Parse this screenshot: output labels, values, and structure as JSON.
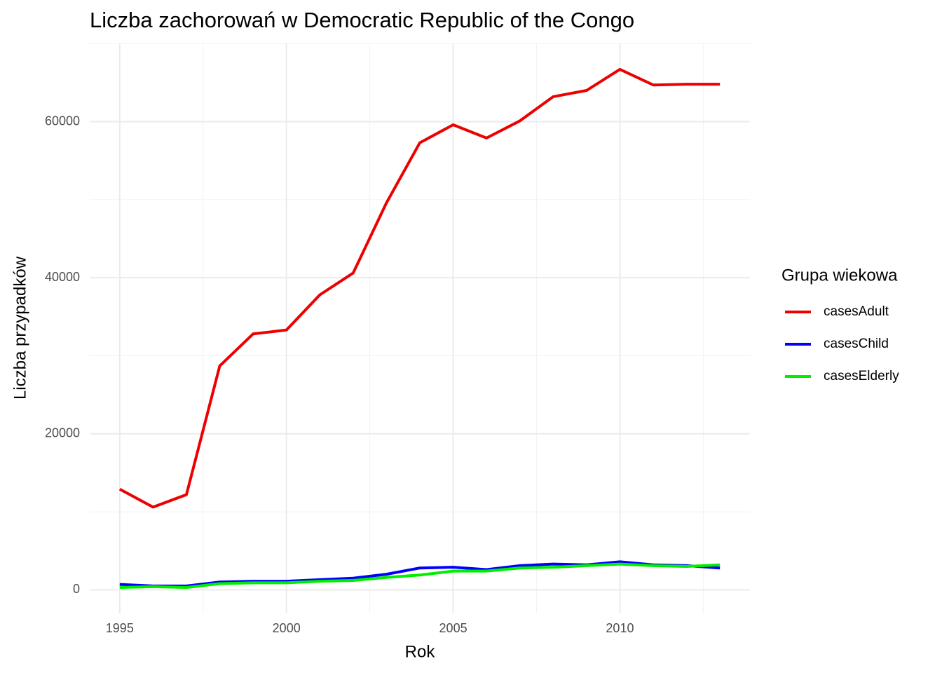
{
  "chart_data": {
    "type": "line",
    "title": "Liczba zachorowań w Democratic Republic of the Congo",
    "x_label": "Rok",
    "y_label": "Liczba przypadków",
    "legend_title": "Grupa wiekowa",
    "legend_position": "right",
    "grid": true,
    "x": [
      1995,
      1996,
      1997,
      1998,
      1999,
      2000,
      2001,
      2002,
      2003,
      2004,
      2005,
      2006,
      2007,
      2008,
      2009,
      2010,
      2011,
      2012,
      2013
    ],
    "series": [
      {
        "name": "casesAdult",
        "color": "#ee0000",
        "values": [
          12900,
          10600,
          12200,
          28700,
          32800,
          33300,
          37800,
          40600,
          49600,
          57300,
          59600,
          57900,
          60100,
          63200,
          64000,
          66700,
          64700,
          64800,
          64800
        ]
      },
      {
        "name": "casesChild",
        "color": "#0000ff",
        "values": [
          700,
          500,
          500,
          1000,
          1100,
          1100,
          1300,
          1500,
          2000,
          2800,
          2900,
          2600,
          3100,
          3300,
          3200,
          3600,
          3200,
          3100,
          2800
        ]
      },
      {
        "name": "casesElderly",
        "color": "#00ee00",
        "values": [
          300,
          400,
          300,
          800,
          900,
          900,
          1100,
          1200,
          1600,
          1900,
          2400,
          2400,
          2800,
          2900,
          3100,
          3300,
          3100,
          3000,
          3200
        ]
      }
    ],
    "xlim": [
      1994.1,
      2013.9
    ],
    "xticks": [
      1995,
      2000,
      2005,
      2010
    ],
    "xminor": [
      1997.5,
      2002.5,
      2007.5,
      2012.5
    ],
    "ylim": [
      -3020,
      70020
    ],
    "yticks": [
      0,
      20000,
      40000,
      60000
    ],
    "yminor": [
      10000,
      30000,
      50000,
      70000
    ]
  }
}
